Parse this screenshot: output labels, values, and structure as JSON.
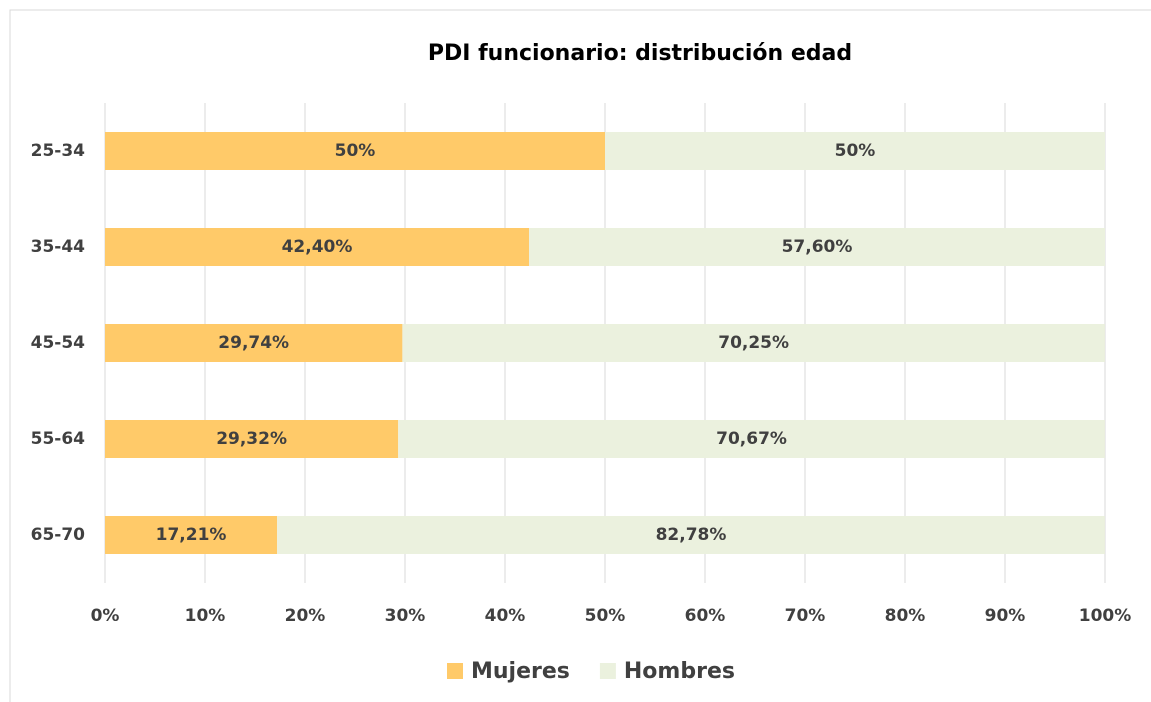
{
  "chart_data": {
    "type": "bar",
    "orientation": "horizontal",
    "stacked": true,
    "title": "PDI funcionario: distribución edad",
    "categories": [
      "25-34",
      "35-44",
      "45-54",
      "55-64",
      "65-70"
    ],
    "series": [
      {
        "name": "Mujeres",
        "color": "#ffca69",
        "values": [
          50,
          42.4,
          29.74,
          29.32,
          17.21
        ],
        "value_labels": [
          "50%",
          "42,40%",
          "29,74%",
          "29,32%",
          "17,21%"
        ]
      },
      {
        "name": "Hombres",
        "color": "#ebf1de",
        "values": [
          50,
          57.6,
          70.25,
          70.67,
          82.78
        ],
        "value_labels": [
          "50%",
          "57,60%",
          "70,25%",
          "70,67%",
          "82,78%"
        ]
      }
    ],
    "xlim": [
      0,
      100
    ],
    "xticks": [
      {
        "value": 0,
        "label": "0%"
      },
      {
        "value": 10,
        "label": "10%"
      },
      {
        "value": 20,
        "label": "20%"
      },
      {
        "value": 30,
        "label": "30%"
      },
      {
        "value": 40,
        "label": "40%"
      },
      {
        "value": 50,
        "label": "50%"
      },
      {
        "value": 60,
        "label": "60%"
      },
      {
        "value": 70,
        "label": "70%"
      },
      {
        "value": 80,
        "label": "80%"
      },
      {
        "value": 90,
        "label": "90%"
      },
      {
        "value": 100,
        "label": "100%"
      }
    ],
    "grid": true,
    "legend": "bottom"
  }
}
